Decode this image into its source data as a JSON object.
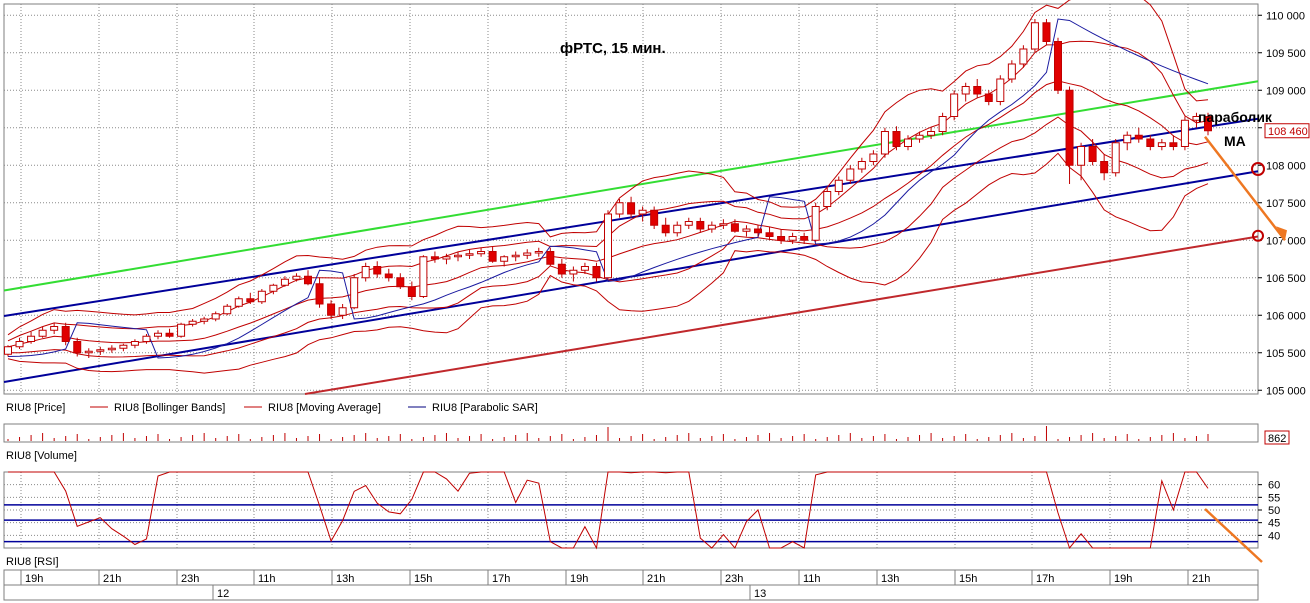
{
  "chart_data": [
    {
      "type": "candlestick",
      "title": "фРТС, 15 мин.",
      "annotations": [
        "параболик",
        "MA"
      ],
      "y_ticks": [
        "110 000",
        "109 500",
        "109 000",
        "108 500",
        "108 000",
        "107 500",
        "107 000",
        "106 500",
        "106 000",
        "105 500",
        "105 000"
      ],
      "ylim": [
        104950,
        110150
      ],
      "last_price_label": "108 460",
      "last_price": 108460,
      "grid": true,
      "legend": [
        {
          "name": "RIU8 [Price]",
          "color": "#000000"
        },
        {
          "name": "RIU8 [Bollinger Bands]",
          "color": "#c00000"
        },
        {
          "name": "RIU8 [Moving Average]",
          "color": "#c00000"
        },
        {
          "name": "RIU8 [Parabolic SAR]",
          "color": "#00007f"
        }
      ],
      "candles": [
        [
          105480,
          105600,
          105450,
          105580
        ],
        [
          105580,
          105700,
          105550,
          105650
        ],
        [
          105650,
          105780,
          105620,
          105720
        ],
        [
          105720,
          105850,
          105700,
          105800
        ],
        [
          105800,
          105900,
          105750,
          105850
        ],
        [
          105850,
          105900,
          105600,
          105650
        ],
        [
          105650,
          105700,
          105450,
          105500
        ],
        [
          105500,
          105560,
          105430,
          105520
        ],
        [
          105520,
          105580,
          105470,
          105540
        ],
        [
          105540,
          105600,
          105500,
          105560
        ],
        [
          105560,
          105620,
          105520,
          105600
        ],
        [
          105600,
          105680,
          105560,
          105650
        ],
        [
          105650,
          105750,
          105620,
          105720
        ],
        [
          105720,
          105800,
          105680,
          105760
        ],
        [
          105760,
          105820,
          105700,
          105720
        ],
        [
          105720,
          105900,
          105700,
          105880
        ],
        [
          105880,
          105950,
          105850,
          105920
        ],
        [
          105920,
          105980,
          105880,
          105950
        ],
        [
          105950,
          106050,
          105920,
          106020
        ],
        [
          106020,
          106150,
          106000,
          106120
        ],
        [
          106120,
          106250,
          106100,
          106220
        ],
        [
          106220,
          106300,
          106150,
          106180
        ],
        [
          106180,
          106350,
          106150,
          106320
        ],
        [
          106320,
          106420,
          106280,
          106400
        ],
        [
          106400,
          106520,
          106380,
          106480
        ],
        [
          106480,
          106560,
          106450,
          106520
        ],
        [
          106520,
          106600,
          106400,
          106420
        ],
        [
          106420,
          106500,
          106100,
          106150
        ],
        [
          106150,
          106200,
          105950,
          106000
        ],
        [
          106000,
          106150,
          105950,
          106100
        ],
        [
          106100,
          106550,
          106080,
          106500
        ],
        [
          106500,
          106700,
          106450,
          106650
        ],
        [
          106650,
          106720,
          106500,
          106550
        ],
        [
          106550,
          106620,
          106450,
          106500
        ],
        [
          106500,
          106560,
          106350,
          106380
        ],
        [
          106380,
          106450,
          106200,
          106250
        ],
        [
          106250,
          106800,
          106230,
          106780
        ],
        [
          106780,
          106850,
          106700,
          106750
        ],
        [
          106750,
          106820,
          106680,
          106780
        ],
        [
          106780,
          106850,
          106720,
          106800
        ],
        [
          106800,
          106880,
          106750,
          106820
        ],
        [
          106820,
          106900,
          106780,
          106850
        ],
        [
          106850,
          106920,
          106700,
          106720
        ],
        [
          106720,
          106800,
          106650,
          106780
        ],
        [
          106780,
          106850,
          106720,
          106800
        ],
        [
          106800,
          106880,
          106750,
          106830
        ],
        [
          106830,
          106900,
          106780,
          106850
        ],
        [
          106850,
          106900,
          106650,
          106680
        ],
        [
          106680,
          106750,
          106500,
          106550
        ],
        [
          106550,
          106650,
          106450,
          106600
        ],
        [
          106600,
          106700,
          106550,
          106650
        ],
        [
          106650,
          106700,
          106450,
          106500
        ],
        [
          106500,
          107400,
          106480,
          107350
        ],
        [
          107350,
          107550,
          107300,
          107500
        ],
        [
          107500,
          107580,
          107300,
          107350
        ],
        [
          107350,
          107450,
          107250,
          107400
        ],
        [
          107400,
          107450,
          107150,
          107200
        ],
        [
          107200,
          107300,
          107050,
          107100
        ],
        [
          107100,
          107250,
          107050,
          107200
        ],
        [
          107200,
          107300,
          107150,
          107250
        ],
        [
          107250,
          107300,
          107100,
          107150
        ],
        [
          107150,
          107250,
          107100,
          107200
        ],
        [
          107200,
          107280,
          107150,
          107220
        ],
        [
          107220,
          107280,
          107100,
          107120
        ],
        [
          107120,
          107200,
          107050,
          107150
        ],
        [
          107150,
          107200,
          107050,
          107100
        ],
        [
          107100,
          107180,
          107000,
          107050
        ],
        [
          107050,
          107150,
          106950,
          107000
        ],
        [
          107000,
          107100,
          106950,
          107050
        ],
        [
          107050,
          107100,
          106950,
          107000
        ],
        [
          107000,
          107500,
          106980,
          107450
        ],
        [
          107450,
          107700,
          107400,
          107650
        ],
        [
          107650,
          107850,
          107600,
          107800
        ],
        [
          107800,
          108000,
          107750,
          107950
        ],
        [
          107950,
          108100,
          107900,
          108050
        ],
        [
          108050,
          108200,
          108000,
          108150
        ],
        [
          108150,
          108500,
          108100,
          108450
        ],
        [
          108450,
          108520,
          108200,
          108250
        ],
        [
          108250,
          108400,
          108200,
          108350
        ],
        [
          108350,
          108450,
          108300,
          108400
        ],
        [
          108400,
          108500,
          108350,
          108450
        ],
        [
          108450,
          108700,
          108400,
          108650
        ],
        [
          108650,
          109000,
          108600,
          108950
        ],
        [
          108950,
          109100,
          108850,
          109050
        ],
        [
          109050,
          109150,
          108900,
          108950
        ],
        [
          108950,
          109000,
          108800,
          108850
        ],
        [
          108850,
          109200,
          108800,
          109150
        ],
        [
          109150,
          109400,
          109100,
          109350
        ],
        [
          109350,
          109600,
          109300,
          109550
        ],
        [
          109550,
          109950,
          109500,
          109900
        ],
        [
          109900,
          109950,
          109600,
          109650
        ],
        [
          109650,
          109700,
          108950,
          109000
        ],
        [
          109000,
          109050,
          107750,
          108000
        ],
        [
          108000,
          108300,
          107800,
          108250
        ],
        [
          108250,
          108350,
          108000,
          108050
        ],
        [
          108050,
          108150,
          107800,
          107900
        ],
        [
          107900,
          108350,
          107850,
          108300
        ],
        [
          108300,
          108450,
          108200,
          108400
        ],
        [
          108400,
          108500,
          108300,
          108350
        ],
        [
          108350,
          108400,
          108200,
          108250
        ],
        [
          108250,
          108350,
          108200,
          108300
        ],
        [
          108300,
          108400,
          108200,
          108250
        ],
        [
          108250,
          108650,
          108200,
          108600
        ],
        [
          108600,
          108700,
          108500,
          108650
        ],
        [
          108650,
          108700,
          108400,
          108460
        ]
      ]
    },
    {
      "type": "bar",
      "legend": [
        {
          "name": "RIU8 [Volume]",
          "color": "#c00000"
        }
      ],
      "last_value_label": "862"
    },
    {
      "type": "line",
      "legend": [
        {
          "name": "RIU8 [RSI]",
          "color": "#c00000"
        }
      ],
      "y_ticks": [
        "60",
        "55",
        "50",
        "45",
        "40"
      ],
      "ylim": [
        35,
        65
      ],
      "levels": [
        52,
        46,
        37.5
      ]
    }
  ],
  "x_ticks": [
    "19h",
    "21h",
    "23h",
    "11h",
    "13h",
    "15h",
    "17h",
    "19h",
    "21h",
    "23h",
    "11h",
    "13h",
    "15h",
    "17h",
    "19h",
    "21h"
  ],
  "dates": [
    "12",
    "13"
  ]
}
